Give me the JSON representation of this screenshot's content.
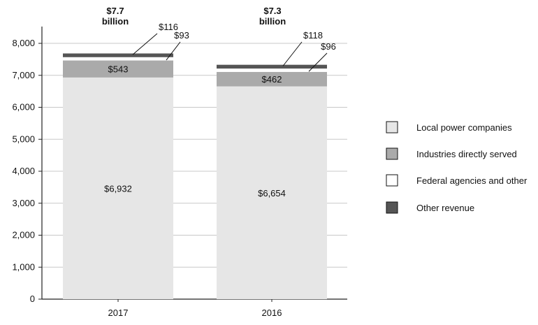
{
  "chart_data": {
    "type": "bar",
    "stacked": true,
    "categories": [
      "2017",
      "2016"
    ],
    "series": [
      {
        "name": "Local power companies",
        "values": [
          6932,
          6654
        ],
        "labels": [
          "$6,932",
          "$6,654"
        ],
        "color": "#e6e6e6"
      },
      {
        "name": "Industries directly served",
        "values": [
          543,
          462
        ],
        "labels": [
          "$543",
          "$462"
        ],
        "color": "#aaaaaa"
      },
      {
        "name": "Federal agencies and other",
        "values": [
          93,
          96
        ],
        "labels": [
          "$93",
          "$96"
        ],
        "color": "#ffffff"
      },
      {
        "name": "Other revenue",
        "values": [
          116,
          118
        ],
        "labels": [
          "$116",
          "$118"
        ],
        "color": "#555555"
      }
    ],
    "totals": [
      {
        "amount": "$7.7",
        "unit": "billion"
      },
      {
        "amount": "$7.3",
        "unit": "billion"
      }
    ],
    "yticks": [
      0,
      1000,
      2000,
      3000,
      4000,
      5000,
      6000,
      7000,
      8000
    ],
    "ytick_labels": [
      "0",
      "1,000",
      "2,000",
      "3,000",
      "4,000",
      "5,000",
      "6,000",
      "7,000",
      "8,000"
    ],
    "ylim": [
      0,
      8700
    ],
    "grid": true,
    "legend_position": "right",
    "xlabel": "",
    "ylabel": "",
    "title": ""
  }
}
